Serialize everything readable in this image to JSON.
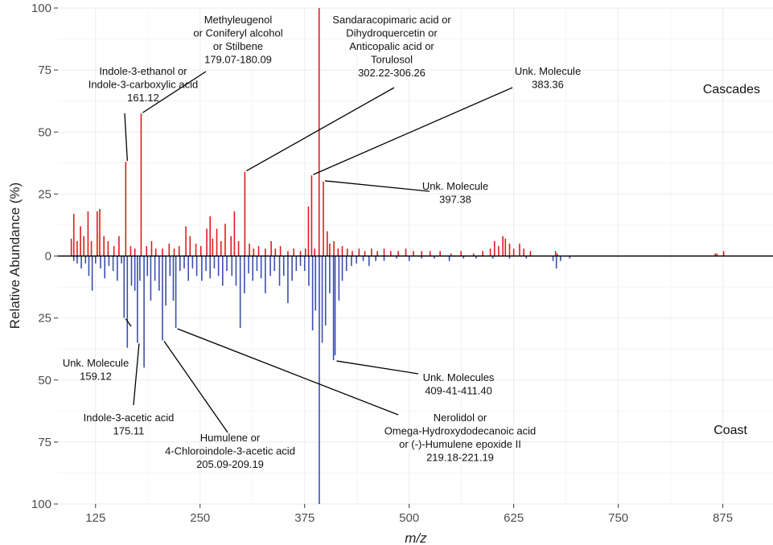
{
  "chart_data": {
    "type": "line",
    "title": "",
    "xlabel": "m/z",
    "ylabel": "Relative Abundance (%)",
    "xlim": [
      80,
      935
    ],
    "ylim": [
      -100,
      100
    ],
    "grid": true,
    "x_ticks": [
      125,
      250,
      375,
      500,
      625,
      750,
      875
    ],
    "y_ticks": [
      {
        "value": 100,
        "label": "100"
      },
      {
        "value": 75,
        "label": "75"
      },
      {
        "value": 50,
        "label": "50"
      },
      {
        "value": 25,
        "label": "25"
      },
      {
        "value": 0,
        "label": "0"
      },
      {
        "value": -25,
        "label": "25"
      },
      {
        "value": -50,
        "label": "50"
      },
      {
        "value": -75,
        "label": "75"
      },
      {
        "value": -100,
        "label": "100"
      }
    ],
    "region_labels": {
      "top": "Cascades",
      "bottom": "Coast"
    },
    "series": [
      {
        "name": "Cascades",
        "color": "#e31a1c",
        "direction": "up",
        "peaks": [
          [
            96,
            7
          ],
          [
            99,
            17
          ],
          [
            103,
            6
          ],
          [
            107,
            12
          ],
          [
            111,
            8
          ],
          [
            116,
            18
          ],
          [
            120,
            6
          ],
          [
            127,
            18
          ],
          [
            130,
            19
          ],
          [
            135,
            8
          ],
          [
            140,
            6
          ],
          [
            147,
            4
          ],
          [
            153,
            8
          ],
          [
            161.12,
            38
          ],
          [
            167,
            4
          ],
          [
            172,
            3
          ],
          [
            179.5,
            57.5
          ],
          [
            186,
            4
          ],
          [
            192,
            6
          ],
          [
            197,
            3
          ],
          [
            205,
            3
          ],
          [
            213,
            5
          ],
          [
            219,
            3
          ],
          [
            225,
            4
          ],
          [
            233,
            12
          ],
          [
            238,
            8
          ],
          [
            245,
            5
          ],
          [
            251,
            4
          ],
          [
            258,
            11
          ],
          [
            262,
            16
          ],
          [
            265,
            7
          ],
          [
            270,
            11
          ],
          [
            275,
            6
          ],
          [
            280,
            13
          ],
          [
            287,
            8
          ],
          [
            291,
            18
          ],
          [
            296,
            6
          ],
          [
            303.5,
            34
          ],
          [
            309,
            5
          ],
          [
            314,
            3
          ],
          [
            320,
            4
          ],
          [
            328,
            3
          ],
          [
            335,
            6
          ],
          [
            340,
            3
          ],
          [
            346,
            4
          ],
          [
            355,
            2
          ],
          [
            362,
            3
          ],
          [
            370,
            2
          ],
          [
            376,
            3
          ],
          [
            379.5,
            20
          ],
          [
            383.36,
            32.5
          ],
          [
            387,
            3
          ],
          [
            392.3,
            100
          ],
          [
            397.38,
            30
          ],
          [
            402,
            10
          ],
          [
            405,
            5
          ],
          [
            410,
            6
          ],
          [
            415,
            3
          ],
          [
            420,
            4
          ],
          [
            426,
            3
          ],
          [
            432,
            2
          ],
          [
            440,
            3
          ],
          [
            447,
            2
          ],
          [
            455,
            3
          ],
          [
            462,
            2
          ],
          [
            470,
            3
          ],
          [
            478,
            2
          ],
          [
            487,
            2
          ],
          [
            496,
            3
          ],
          [
            505,
            2
          ],
          [
            515,
            2
          ],
          [
            525,
            2
          ],
          [
            537,
            2
          ],
          [
            550,
            1
          ],
          [
            562,
            2
          ],
          [
            577,
            1
          ],
          [
            588,
            2
          ],
          [
            597,
            3
          ],
          [
            602,
            6
          ],
          [
            607,
            4
          ],
          [
            612,
            8
          ],
          [
            615,
            7
          ],
          [
            620,
            5
          ],
          [
            625,
            3
          ],
          [
            632,
            5
          ],
          [
            637,
            3
          ],
          [
            645,
            2
          ],
          [
            675,
            2
          ],
          [
            677,
            1
          ],
          [
            866,
            1
          ],
          [
            868,
            1
          ],
          [
            876,
            2
          ]
        ]
      },
      {
        "name": "Coast",
        "color": "#3c4fae",
        "direction": "down",
        "peaks": [
          [
            99,
            2
          ],
          [
            103,
            3
          ],
          [
            108,
            5
          ],
          [
            113,
            3
          ],
          [
            117,
            8
          ],
          [
            121,
            14
          ],
          [
            125,
            3
          ],
          [
            131,
            5
          ],
          [
            136,
            9
          ],
          [
            141,
            4
          ],
          [
            146,
            6
          ],
          [
            151,
            10
          ],
          [
            156,
            3
          ],
          [
            159.12,
            25
          ],
          [
            163,
            37
          ],
          [
            168,
            12
          ],
          [
            172,
            14
          ],
          [
            175.11,
            35
          ],
          [
            178,
            10
          ],
          [
            183,
            45
          ],
          [
            187,
            8
          ],
          [
            191,
            18
          ],
          [
            196,
            10
          ],
          [
            201,
            14
          ],
          [
            205,
            34
          ],
          [
            209,
            20
          ],
          [
            214,
            8
          ],
          [
            218,
            18
          ],
          [
            221,
            29
          ],
          [
            226,
            6
          ],
          [
            231,
            5
          ],
          [
            236,
            10
          ],
          [
            241,
            5
          ],
          [
            246,
            8
          ],
          [
            252,
            10
          ],
          [
            257,
            6
          ],
          [
            262,
            9
          ],
          [
            267,
            5
          ],
          [
            272,
            8
          ],
          [
            277,
            12
          ],
          [
            282,
            6
          ],
          [
            288,
            8
          ],
          [
            293,
            12
          ],
          [
            298,
            29
          ],
          [
            303,
            15
          ],
          [
            308,
            7
          ],
          [
            313,
            10
          ],
          [
            318,
            6
          ],
          [
            323,
            9
          ],
          [
            328,
            15
          ],
          [
            334,
            8
          ],
          [
            339,
            6
          ],
          [
            345,
            12
          ],
          [
            350,
            8
          ],
          [
            355,
            19
          ],
          [
            360,
            10
          ],
          [
            365,
            6
          ],
          [
            370,
            4
          ],
          [
            375,
            6
          ],
          [
            380,
            12
          ],
          [
            384.5,
            30
          ],
          [
            388,
            22
          ],
          [
            392.5,
            100
          ],
          [
            396,
            35
          ],
          [
            400,
            28
          ],
          [
            405,
            15
          ],
          [
            409.5,
            42
          ],
          [
            411.4,
            40
          ],
          [
            416,
            18
          ],
          [
            420,
            10
          ],
          [
            425,
            6
          ],
          [
            431,
            4
          ],
          [
            437,
            3
          ],
          [
            445,
            2
          ],
          [
            452,
            4
          ],
          [
            460,
            2
          ],
          [
            470,
            2
          ],
          [
            485,
            1
          ],
          [
            500,
            2
          ],
          [
            515,
            1
          ],
          [
            530,
            1
          ],
          [
            548,
            2
          ],
          [
            565,
            1
          ],
          [
            580,
            1
          ],
          [
            600,
            1
          ],
          [
            620,
            1
          ],
          [
            640,
            1
          ],
          [
            672,
            2
          ],
          [
            676,
            5
          ],
          [
            681,
            2
          ],
          [
            692,
            1
          ]
        ]
      }
    ],
    "annotations": [
      {
        "lines": [
          "Indole-3-ethanol or",
          "Indole-3-carboxylic acid",
          "161.12"
        ],
        "peak": [
          161.12,
          38
        ]
      },
      {
        "lines": [
          "Methyleugenol",
          "or Coniferyl alcohol",
          "or Stilbene",
          "179.07-180.09"
        ],
        "peak": [
          179.5,
          57.5
        ]
      },
      {
        "lines": [
          "Sandaracopimaric acid or",
          "Dihydroquercetin or",
          "Anticopalic acid or",
          "Torulosol",
          "302.22-306.26"
        ],
        "peak": [
          303.5,
          34
        ]
      },
      {
        "lines": [
          "Unk. Molecule",
          "383.36"
        ],
        "peak": [
          383.36,
          32.5
        ]
      },
      {
        "lines": [
          "Unk. Molecule",
          "397.38"
        ],
        "peak": [
          397.38,
          30
        ]
      },
      {
        "lines": [
          "Unk. Molecule",
          "159.12"
        ],
        "peak": [
          159.12,
          -25
        ]
      },
      {
        "lines": [
          "Indole-3-acetic acid",
          "175.11"
        ],
        "peak": [
          175.11,
          -35
        ]
      },
      {
        "lines": [
          "Humulene or",
          "4-Chloroindole-3-acetic acid",
          "205.09-209.19"
        ],
        "peak": [
          205,
          -34
        ]
      },
      {
        "lines": [
          "Nerolidol or",
          "Omega-Hydroxydodecanoic acid",
          "or (-)-Humulene epoxide II",
          "219.18-221.19"
        ],
        "peak": [
          221,
          -29
        ]
      },
      {
        "lines": [
          "Unk. Molecules",
          "409-41-411.40"
        ],
        "peak": [
          411.4,
          -42
        ]
      }
    ]
  }
}
